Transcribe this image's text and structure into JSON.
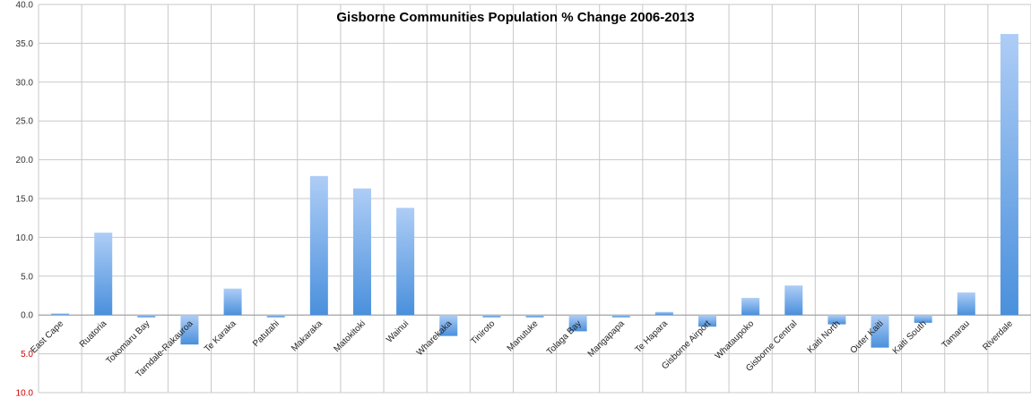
{
  "chart_data": {
    "type": "bar",
    "title": "Gisborne Communities Population % Change 2006-2013",
    "xlabel": "",
    "ylabel": "",
    "ylim": [
      -10,
      40
    ],
    "yticks": [
      40,
      35,
      30,
      25,
      20,
      15,
      10,
      5,
      0,
      -5,
      -10
    ],
    "ytick_labels": [
      "40.0",
      "35.0",
      "30.0",
      "25.0",
      "20.0",
      "15.0",
      "10.0",
      "5.0",
      "0.0",
      "5.0",
      "10.0"
    ],
    "grid": true,
    "legend": "none",
    "categories": [
      "East Cape",
      "Ruatoria",
      "Tokomaru Bay",
      "Tarndale-Rakauroa",
      "Te Karaka",
      "Patutahi",
      "Makaraka",
      "Matokitoki",
      "Wainui",
      "Wharekaka",
      "Tiniroto",
      "Manutuke",
      "Tolaga Bay",
      "Mangapapa",
      "Te Hapara",
      "Gisborne Airport",
      "Whataupoko",
      "Gisborne Central",
      "Kaiti North",
      "Outer Kaiti",
      "Kaiti South",
      "Tamarau",
      "Riverdale"
    ],
    "values": [
      0.2,
      10.6,
      -0.3,
      -3.8,
      3.4,
      -0.3,
      17.9,
      16.3,
      13.8,
      -2.7,
      -0.3,
      -0.3,
      -2.1,
      -0.3,
      0.4,
      -1.5,
      2.2,
      3.8,
      -1.2,
      -4.2,
      -1.0,
      2.9,
      36.2
    ],
    "colors": {
      "bar_top": "#aecdf6",
      "bar_bottom": "#4a90dc",
      "grid": "#c8c8c8",
      "axis": "#999999",
      "negative_tick": "#cc0000"
    }
  }
}
